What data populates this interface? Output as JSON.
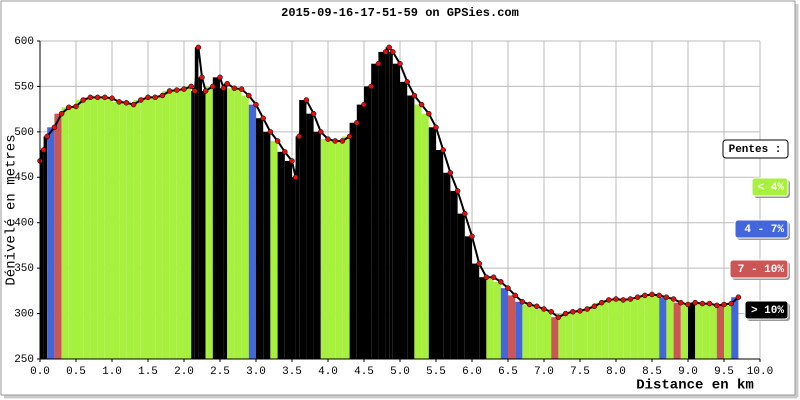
{
  "chart_data": {
    "type": "elevation",
    "title": "2015-09-16-17-51-59 on GPSies.com",
    "x_label": "Distance en km",
    "y_label": "Dénivelé en metres",
    "xlim": [
      0,
      10
    ],
    "ylim": [
      250,
      600
    ],
    "xticks": [
      {
        "value": 0,
        "label": "0.0"
      },
      {
        "value": 0.5,
        "label": "0.5"
      },
      {
        "value": 1,
        "label": "1.0"
      },
      {
        "value": 1.5,
        "label": "1.5"
      },
      {
        "value": 2,
        "label": "2.0"
      },
      {
        "value": 2.5,
        "label": "2.5"
      },
      {
        "value": 3,
        "label": "3.0"
      },
      {
        "value": 3.5,
        "label": "3.5"
      },
      {
        "value": 4,
        "label": "4.0"
      },
      {
        "value": 4.5,
        "label": "4.5"
      },
      {
        "value": 5,
        "label": "5.0"
      },
      {
        "value": 5.5,
        "label": "5.5"
      },
      {
        "value": 6,
        "label": "6.0"
      },
      {
        "value": 6.5,
        "label": "6.5"
      },
      {
        "value": 7,
        "label": "7.0"
      },
      {
        "value": 7.5,
        "label": "7.5"
      },
      {
        "value": 8,
        "label": "8.0"
      },
      {
        "value": 8.5,
        "label": "8.5"
      },
      {
        "value": 9,
        "label": "9.0"
      },
      {
        "value": 9.5,
        "label": "9.5"
      },
      {
        "value": 10,
        "label": "10.0"
      }
    ],
    "yticks": [
      250,
      300,
      350,
      400,
      450,
      500,
      550,
      600
    ],
    "grid": true,
    "line_color": "#000000",
    "point_color": "#dd1111",
    "x": [
      0,
      0.05,
      0.1,
      0.2,
      0.3,
      0.4,
      0.5,
      0.6,
      0.7,
      0.8,
      0.9,
      1.0,
      1.1,
      1.2,
      1.3,
      1.4,
      1.5,
      1.6,
      1.7,
      1.8,
      1.9,
      2.0,
      2.1,
      2.15,
      2.2,
      2.25,
      2.3,
      2.4,
      2.5,
      2.55,
      2.6,
      2.7,
      2.8,
      2.9,
      3.0,
      3.1,
      3.2,
      3.3,
      3.4,
      3.5,
      3.55,
      3.6,
      3.7,
      3.8,
      3.9,
      4.0,
      4.1,
      4.2,
      4.3,
      4.4,
      4.5,
      4.6,
      4.7,
      4.8,
      4.85,
      4.9,
      5.0,
      5.1,
      5.2,
      5.3,
      5.4,
      5.5,
      5.6,
      5.7,
      5.8,
      5.9,
      6.0,
      6.1,
      6.2,
      6.3,
      6.4,
      6.5,
      6.6,
      6.7,
      6.8,
      6.9,
      7.0,
      7.1,
      7.2,
      7.3,
      7.4,
      7.5,
      7.6,
      7.7,
      7.8,
      7.9,
      8.0,
      8.1,
      8.2,
      8.3,
      8.4,
      8.5,
      8.6,
      8.7,
      8.8,
      8.9,
      9.0,
      9.1,
      9.2,
      9.3,
      9.4,
      9.5,
      9.6,
      9.7
    ],
    "values": [
      468,
      480,
      495,
      505,
      520,
      527,
      528,
      535,
      538,
      538,
      538,
      537,
      533,
      532,
      530,
      535,
      538,
      538,
      540,
      545,
      546,
      547,
      550,
      545,
      593,
      560,
      545,
      550,
      560,
      548,
      553,
      548,
      547,
      540,
      530,
      515,
      500,
      490,
      478,
      468,
      450,
      495,
      535,
      520,
      500,
      492,
      490,
      490,
      495,
      510,
      530,
      550,
      575,
      588,
      593,
      588,
      575,
      555,
      540,
      530,
      520,
      505,
      480,
      455,
      435,
      410,
      385,
      355,
      340,
      340,
      335,
      328,
      320,
      313,
      310,
      308,
      305,
      302,
      296,
      300,
      302,
      303,
      305,
      308,
      312,
      315,
      316,
      315,
      316,
      318,
      320,
      321,
      320,
      318,
      316,
      312,
      310,
      312,
      311,
      311,
      309,
      310,
      311,
      318
    ],
    "slope_class": [
      3,
      3,
      3,
      1,
      2,
      0,
      0,
      0,
      0,
      0,
      0,
      0,
      0,
      0,
      0,
      0,
      0,
      0,
      0,
      0,
      0,
      0,
      0,
      3,
      3,
      3,
      3,
      0,
      3,
      3,
      3,
      0,
      0,
      0,
      1,
      3,
      3,
      0,
      3,
      3,
      3,
      3,
      3,
      3,
      3,
      0,
      0,
      0,
      0,
      3,
      3,
      3,
      3,
      3,
      3,
      3,
      3,
      3,
      3,
      0,
      0,
      3,
      3,
      3,
      3,
      3,
      3,
      3,
      3,
      0,
      0,
      1,
      2,
      1,
      0,
      0,
      0,
      0,
      2,
      0,
      0,
      0,
      0,
      0,
      0,
      0,
      0,
      0,
      0,
      0,
      0,
      0,
      0,
      1,
      0,
      2,
      0,
      3,
      0,
      0,
      0,
      2,
      0,
      1
    ],
    "legend": {
      "title": "Pentes :",
      "items": [
        {
          "label": "< 4%",
          "color": "#a8f040",
          "text_color": "#ffffff"
        },
        {
          "label": "4 - 7%",
          "color": "#4466dd",
          "text_color": "#ffffff"
        },
        {
          "label": "7 - 10%",
          "color": "#cc5555",
          "text_color": "#ffffff"
        },
        {
          "label": "> 10%",
          "color": "#000000",
          "text_color": "#ffffff"
        }
      ]
    }
  }
}
